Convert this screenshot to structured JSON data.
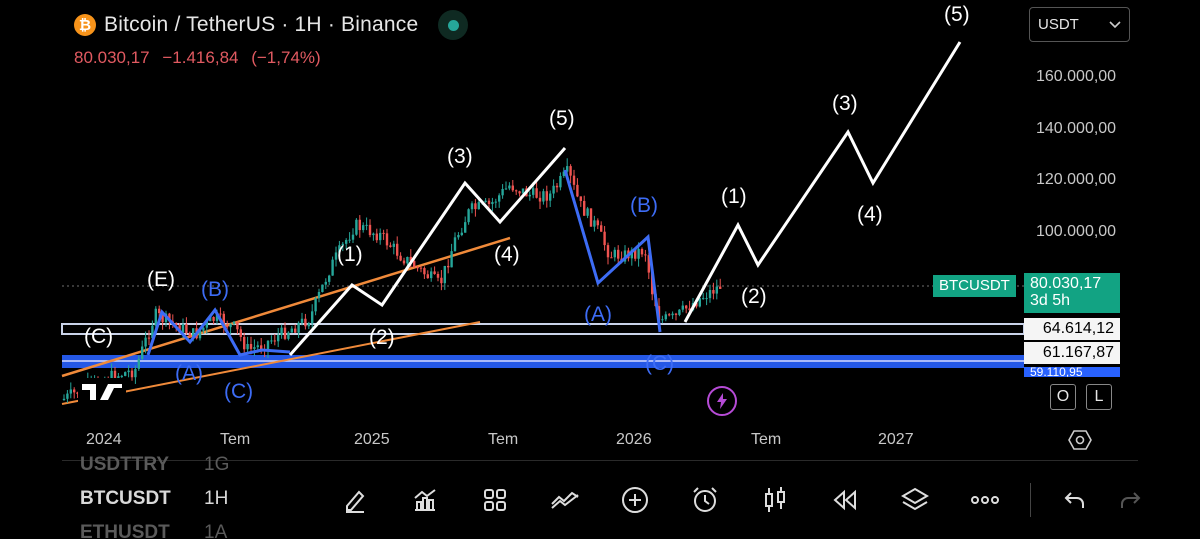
{
  "header": {
    "logo_glyph": "₿",
    "title": "Bitcoin / TetherUS · 1H · Binance",
    "price": "80.030,17",
    "change": "−1.416,84",
    "change_pct": "(−1,74%)",
    "price_color": "#e15a61"
  },
  "currency": {
    "value": "USDT"
  },
  "y_axis": {
    "labels": [
      "160.000,00",
      "140.000,00",
      "120.000,00",
      "100.000,00"
    ]
  },
  "x_axis": {
    "labels": [
      "2024",
      "Tem",
      "2025",
      "Tem",
      "2026",
      "Tem",
      "2027"
    ]
  },
  "price_tags": {
    "symbol": "BTCUSDT",
    "current": "80.030,17",
    "countdown": "3d 5h",
    "level1": "64.614,12",
    "level2": "61.167,87",
    "level3": "59.110,95"
  },
  "wave_labels": {
    "white": [
      "(E)",
      "(C)",
      "(1)",
      "(2)",
      "(3)",
      "(4)",
      "(5)",
      "(1)",
      "(2)",
      "(3)",
      "(4)",
      "(5)"
    ],
    "blue": [
      "(B)",
      "(A)",
      "(C)",
      "(B)",
      "(A)",
      "(C)"
    ]
  },
  "overlay_buttons": [
    "O",
    "L"
  ],
  "watchlist": [
    {
      "symbol": "USDTTRY",
      "tf": "1G"
    },
    {
      "symbol": "BTCUSDT",
      "tf": "1H"
    },
    {
      "symbol": "ETHUSDT",
      "tf": "1A"
    }
  ],
  "toolbar": [
    "pencil-icon",
    "indicators-icon",
    "layout-grid-icon",
    "compare-icon",
    "add-icon",
    "alarm-icon",
    "candles-icon",
    "replay-icon",
    "layers-icon",
    "more-icon",
    "undo-icon",
    "redo-icon"
  ],
  "colors": {
    "up": "#26a69a",
    "down": "#ef5350",
    "accent": "#2962ff",
    "wave_blue": "#3d6cf5",
    "trend": "#f08a3a"
  }
}
